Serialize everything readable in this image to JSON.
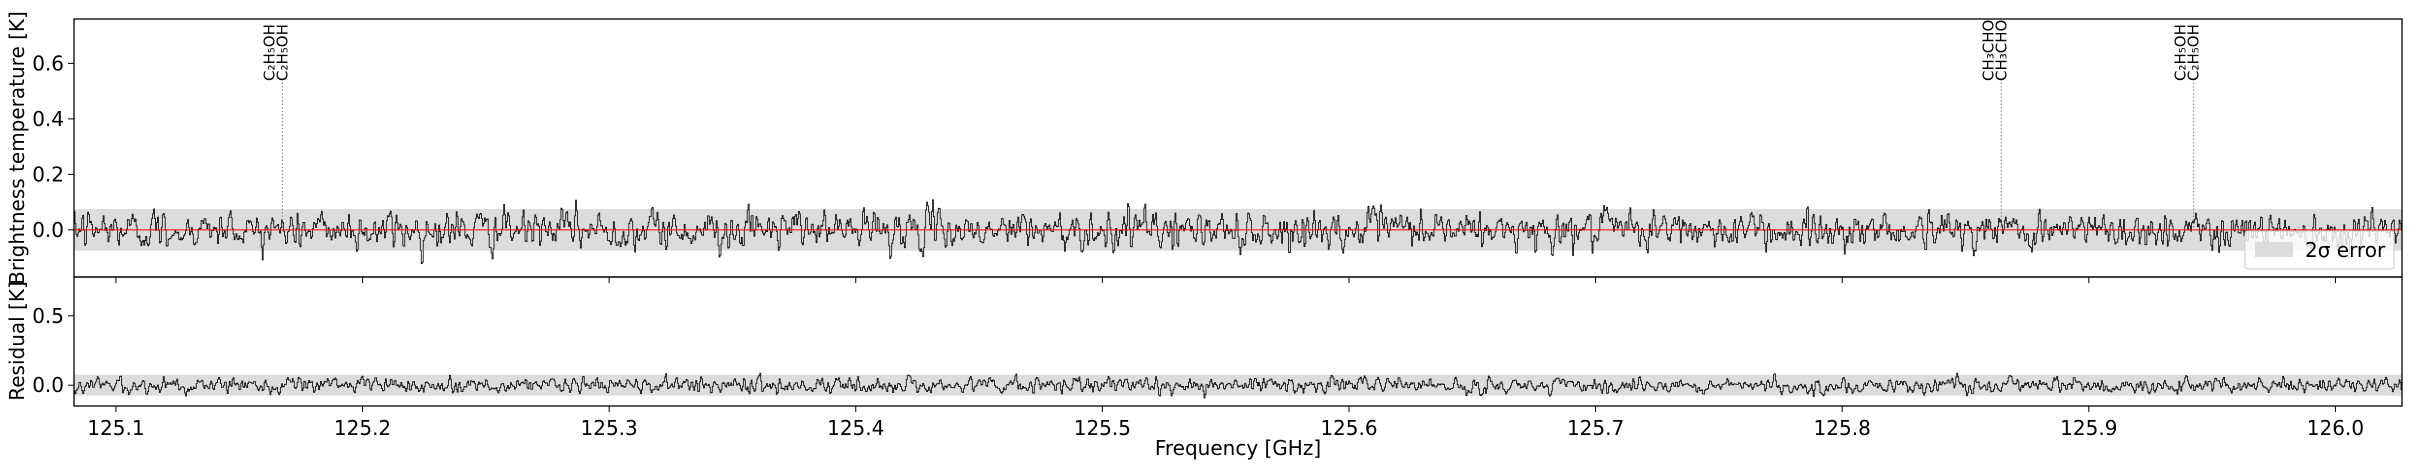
{
  "chart_data": [
    {
      "type": "line",
      "panel": "top",
      "ylabel": "Brightness temperature [K]",
      "xlim": [
        125.083,
        126.027
      ],
      "ylim": [
        -0.17,
        0.76
      ],
      "yticks": [
        0.0,
        0.2,
        0.4,
        0.6
      ],
      "ytick_labels": [
        "0.0",
        "0.2",
        "0.4",
        "0.6"
      ],
      "grid": false,
      "colors": {
        "spectrum": "#000000",
        "model": "#ff0000",
        "error_band": "#dcdcdc",
        "marker": "#808080"
      },
      "error_band": [
        -0.075,
        0.075
      ],
      "series": [
        {
          "kind": "observed spectrum",
          "noise_sigma": 0.035,
          "samples": 2400
        },
        {
          "kind": "model",
          "value": 0.0
        }
      ],
      "line_markers": [
        {
          "x": 125.1675,
          "labels": [
            "C₂H₅OH",
            "C₂H₅OH"
          ]
        },
        {
          "x": 125.8645,
          "labels": [
            "CH₃CHO",
            "CH₃CHO"
          ]
        },
        {
          "x": 125.9425,
          "labels": [
            "C₂H₅OH",
            "C₂H₅OH"
          ]
        }
      ],
      "legend": {
        "label": "2σ error",
        "placement": "lower-right"
      }
    },
    {
      "type": "line",
      "panel": "bottom",
      "ylabel": "Residual [K]",
      "xlabel": "Frequency [GHz]",
      "xlim": [
        125.083,
        126.027
      ],
      "ylim": [
        -0.15,
        0.78
      ],
      "xticks": [
        125.1,
        125.2,
        125.3,
        125.4,
        125.5,
        125.6,
        125.7,
        125.8,
        125.9,
        126.0
      ],
      "xtick_labels": [
        "125.1",
        "125.2",
        "125.3",
        "125.4",
        "125.5",
        "125.6",
        "125.7",
        "125.8",
        "125.9",
        "126.0"
      ],
      "yticks": [
        0.0,
        0.5
      ],
      "ytick_labels": [
        "0.0",
        "0.5"
      ],
      "grid": false,
      "error_band": [
        -0.075,
        0.075
      ],
      "series": [
        {
          "kind": "residual",
          "noise_sigma": 0.03,
          "samples": 2400
        }
      ]
    }
  ]
}
